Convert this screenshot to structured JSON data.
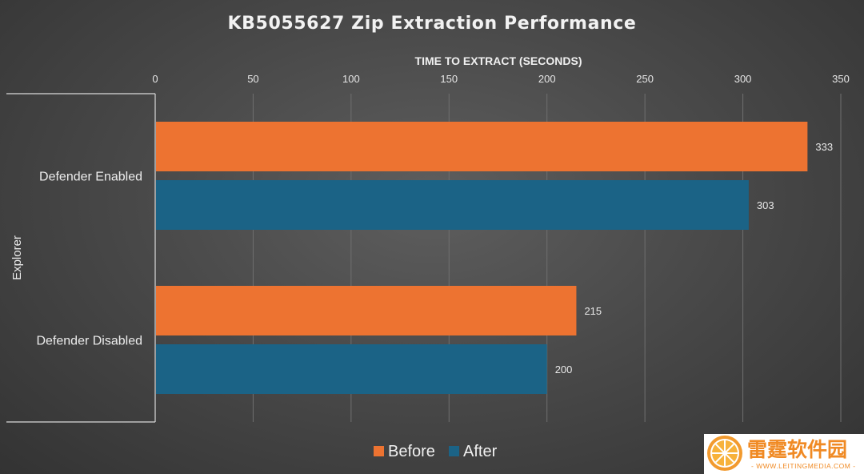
{
  "chart_data": {
    "type": "bar",
    "orientation": "horizontal",
    "title": "KB5055627 Zip Extraction Performance",
    "xlabel": "TIME TO EXTRACT (SECONDS)",
    "ylabel": "",
    "group_label": "Explorer",
    "categories": [
      "Defender Enabled",
      "Defender Disabled"
    ],
    "series": [
      {
        "name": "Before",
        "values": [
          333,
          215
        ],
        "color": "#ed7331"
      },
      {
        "name": "After",
        "values": [
          303,
          200
        ],
        "color": "#1b6386"
      }
    ],
    "xlim": [
      0,
      350
    ],
    "xticks": [
      0,
      50,
      100,
      150,
      200,
      250,
      300,
      350
    ],
    "grid": true,
    "legend": "bottom-center",
    "x_axis_position": "top"
  },
  "watermark": {
    "text_cn": "雷霆软件园",
    "text_en": "- WWW.LEITINGMEDIA.COM -",
    "color": "#f08a24",
    "icon": "orange-slice-icon"
  }
}
